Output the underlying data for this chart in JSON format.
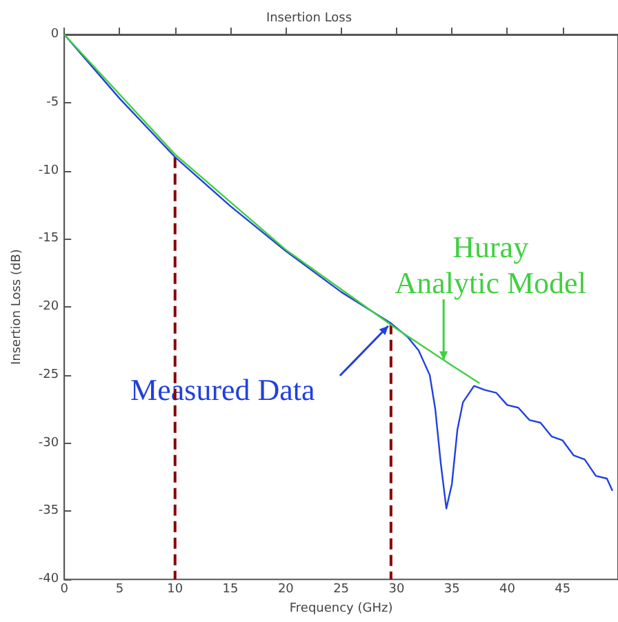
{
  "chart_data": {
    "type": "line",
    "title": "Insertion Loss",
    "xlabel": "Frequency (GHz)",
    "ylabel": "Insertion Loss (dB)",
    "xlim": [
      0,
      50
    ],
    "xticks": [
      0,
      5,
      10,
      15,
      20,
      25,
      30,
      35,
      40,
      45
    ],
    "ylim": [
      -40,
      0
    ],
    "yticks": [
      0,
      -5,
      -10,
      -15,
      -20,
      -25,
      -30,
      -35,
      -40
    ],
    "marker": "none",
    "series": [
      {
        "color": "#2040e0",
        "x": [
          0,
          5,
          10,
          15,
          20,
          25,
          29.5,
          31,
          32,
          33,
          33.5,
          34,
          34.5,
          35,
          35.5,
          36,
          37,
          38,
          39,
          40,
          41,
          42,
          43,
          44,
          45,
          46,
          47,
          48,
          49,
          49.5
        ],
        "values": [
          0,
          -4.7,
          -9,
          -12.6,
          -15.9,
          -18.9,
          -21.2,
          -22.2,
          -23.2,
          -25,
          -27.5,
          -31.5,
          -34.8,
          -33,
          -29,
          -27,
          -25.8,
          -26.1,
          -26.3,
          -27.2,
          -27.4,
          -28.3,
          -28.5,
          -29.5,
          -29.8,
          -30.9,
          -31.2,
          -32.4,
          -32.6,
          -33.5
        ]
      },
      {
        "color": "#40d040",
        "x": [
          0,
          10,
          20,
          30,
          35,
          37.5
        ],
        "values": [
          0,
          -8.8,
          -15.8,
          -21.6,
          -24.3,
          -25.6
        ]
      },
      {
        "color": "#8b0000",
        "line_style": "dashed",
        "x": [
          10,
          10
        ],
        "values": [
          -9,
          -40
        ]
      },
      {
        "color": "#8b0000",
        "line_style": "dashed",
        "x": [
          29.5,
          29.5
        ],
        "values": [
          -21.2,
          -40
        ]
      }
    ],
    "annotations": [
      {
        "text": "Measured Data",
        "x": 29.5,
        "y": -21.2
      },
      {
        "text": "Huray Analytic Model",
        "x": 35,
        "y": -24.3
      }
    ]
  }
}
